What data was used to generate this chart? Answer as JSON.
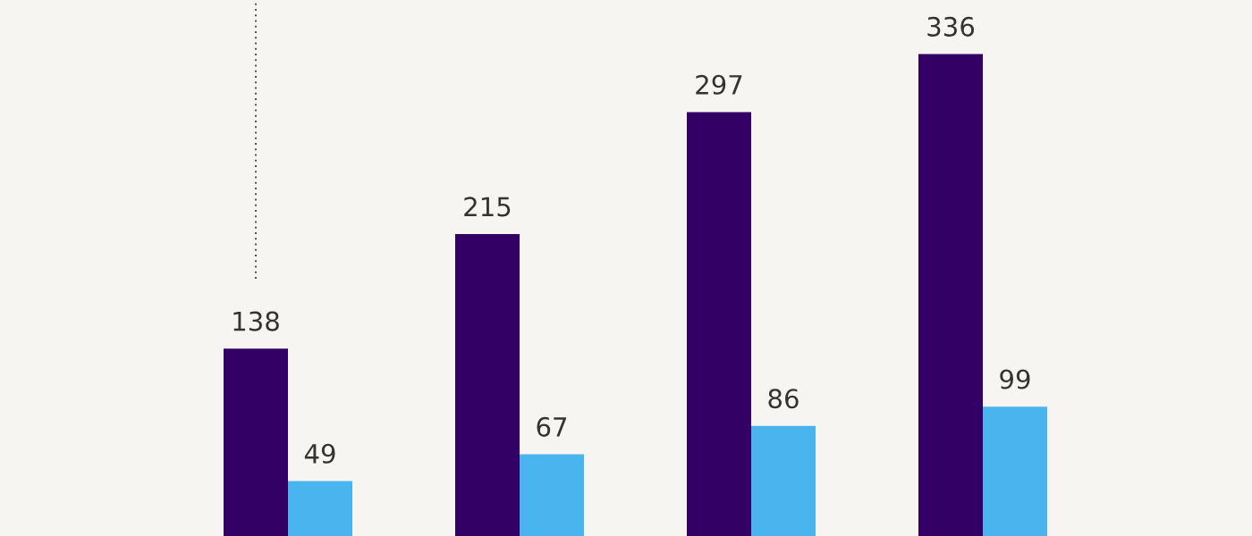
{
  "chart_data": {
    "type": "bar",
    "categories": [
      null,
      null,
      null,
      null
    ],
    "series": [
      {
        "color": "#330066",
        "values": [
          138,
          215,
          297,
          336
        ]
      },
      {
        "color": "#4ab4ee",
        "values": [
          49,
          67,
          86,
          99
        ]
      }
    ],
    "data_labels": true
  }
}
